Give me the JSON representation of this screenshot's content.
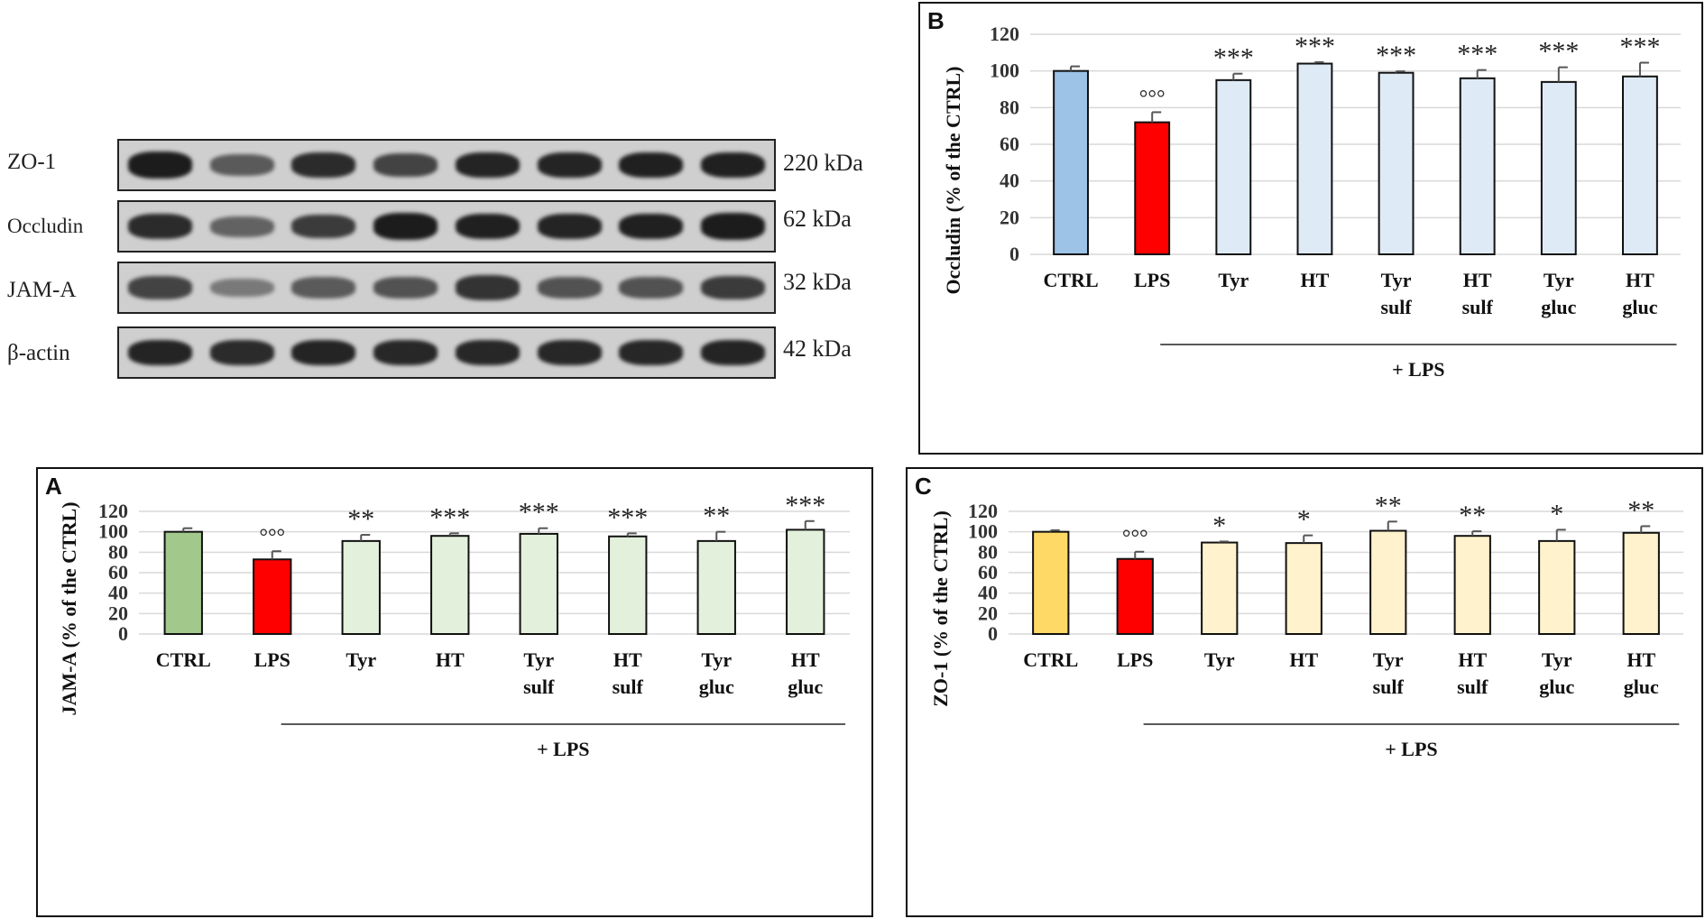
{
  "blot": {
    "rows": [
      {
        "label": "ZO-1",
        "size": "220 kDa",
        "intensities": [
          0.95,
          0.55,
          0.85,
          0.7,
          0.9,
          0.9,
          0.92,
          0.92
        ]
      },
      {
        "label": "Occludin",
        "size": "62 kDa",
        "intensities": [
          0.85,
          0.5,
          0.75,
          0.95,
          0.92,
          0.9,
          0.92,
          0.95
        ]
      },
      {
        "label": "JAM-A",
        "size": "32 kDa",
        "intensities": [
          0.7,
          0.35,
          0.55,
          0.6,
          0.8,
          0.6,
          0.6,
          0.75
        ]
      },
      {
        "label": "β-actin",
        "size": "42 kDa",
        "intensities": [
          0.9,
          0.85,
          0.9,
          0.88,
          0.88,
          0.88,
          0.88,
          0.9
        ]
      }
    ]
  },
  "chart_data": [
    {
      "panel": "A",
      "type": "bar",
      "categories": [
        [
          "CTRL"
        ],
        [
          "LPS"
        ],
        [
          "Tyr"
        ],
        [
          "HT"
        ],
        [
          "Tyr",
          "sulf"
        ],
        [
          "HT",
          "sulf"
        ],
        [
          "Tyr",
          "gluc"
        ],
        [
          "HT",
          "gluc"
        ]
      ],
      "values": [
        100,
        73,
        91,
        96,
        98,
        95.5,
        91,
        102
      ],
      "errors": [
        3.5,
        8,
        6,
        2.5,
        5.5,
        3,
        9,
        8.5
      ],
      "annotations": [
        "",
        "°°°",
        "**",
        "***",
        "***",
        "***",
        "**",
        "***"
      ],
      "colors": [
        "#a2c98b",
        "#ff0000",
        "#e3f0dc",
        "#e3f0dc",
        "#e3f0dc",
        "#e3f0dc",
        "#e3f0dc",
        "#e3f0dc"
      ],
      "ylabel": "JAM-A (% of the CTRL)",
      "ylim": [
        0,
        120
      ],
      "yticks": [
        0,
        20,
        40,
        60,
        80,
        100,
        120
      ],
      "group_label": "+ LPS",
      "grid": true
    },
    {
      "panel": "B",
      "type": "bar",
      "categories": [
        [
          "CTRL"
        ],
        [
          "LPS"
        ],
        [
          "Tyr"
        ],
        [
          "HT"
        ],
        [
          "Tyr",
          "sulf"
        ],
        [
          "HT",
          "sulf"
        ],
        [
          "Tyr",
          "gluc"
        ],
        [
          "HT",
          "gluc"
        ]
      ],
      "values": [
        100,
        72,
        95,
        104,
        99,
        96,
        94,
        97
      ],
      "errors": [
        2.5,
        5.5,
        3.5,
        0.8,
        0.8,
        4.5,
        8,
        7.5
      ],
      "annotations": [
        "",
        "°°°",
        "***",
        "***",
        "***",
        "***",
        "***",
        "***"
      ],
      "colors": [
        "#9dc3e6",
        "#ff0000",
        "#deebf7",
        "#deebf7",
        "#deebf7",
        "#deebf7",
        "#deebf7",
        "#deebf7"
      ],
      "ylabel": "Occludin (% of the CTRL)",
      "ylim": [
        0,
        120
      ],
      "yticks": [
        0,
        20,
        40,
        60,
        80,
        100,
        120
      ],
      "group_label": "+ LPS",
      "grid": true
    },
    {
      "panel": "C",
      "type": "bar",
      "categories": [
        [
          "CTRL"
        ],
        [
          "LPS"
        ],
        [
          "Tyr"
        ],
        [
          "HT"
        ],
        [
          "Tyr",
          "sulf"
        ],
        [
          "HT",
          "sulf"
        ],
        [
          "Tyr",
          "gluc"
        ],
        [
          "HT",
          "gluc"
        ]
      ],
      "values": [
        100,
        73.5,
        89.5,
        89,
        101,
        96,
        91,
        99
      ],
      "errors": [
        1.5,
        7,
        1,
        7.5,
        9,
        4.5,
        11,
        6.5
      ],
      "annotations": [
        "",
        "°°°",
        "*",
        "*",
        "**",
        "**",
        "*",
        "**"
      ],
      "colors": [
        "#ffd966",
        "#ff0000",
        "#fff2cc",
        "#fff2cc",
        "#fff2cc",
        "#fff2cc",
        "#fff2cc",
        "#fff2cc"
      ],
      "ylabel": "ZO-1 (% of the CTRL)",
      "ylim": [
        0,
        120
      ],
      "yticks": [
        0,
        20,
        40,
        60,
        80,
        100,
        120
      ],
      "group_label": "+ LPS",
      "grid": true
    }
  ]
}
